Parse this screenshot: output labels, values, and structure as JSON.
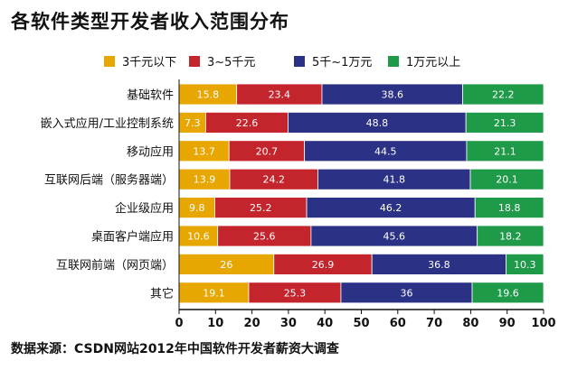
{
  "title": "各软件类型开发者收入范围分布",
  "source_note": "数据来源：CSDN网站2012年中国软件开发者薪资大调查",
  "chart_data": {
    "type": "bar",
    "stacked": true,
    "orientation": "horizontal",
    "categories": [
      "基础软件",
      "嵌入式应用/工业控制系统",
      "移动应用",
      "互联网后端（服务器端）",
      "企业级应用",
      "桌面客户端应用",
      "互联网前端（网页端）",
      "其它"
    ],
    "series": [
      {
        "name": "3千元以下",
        "color": "#e8a600",
        "values": [
          15.8,
          7.3,
          13.7,
          13.9,
          9.8,
          10.6,
          26,
          19.1
        ]
      },
      {
        "name": "3~5千元",
        "color": "#c4252c",
        "values": [
          23.4,
          22.6,
          20.7,
          24.2,
          25.2,
          25.6,
          26.9,
          25.3
        ]
      },
      {
        "name": "5千~1万元",
        "color": "#2b3285",
        "values": [
          38.6,
          48.8,
          44.5,
          41.8,
          46.2,
          45.6,
          36.8,
          36
        ]
      },
      {
        "name": "1万元以上",
        "color": "#1e9a48",
        "values": [
          22.2,
          21.3,
          21.1,
          20.1,
          18.8,
          18.2,
          10.3,
          19.6
        ]
      }
    ],
    "value_labels": [
      [
        "15.8",
        "23.4",
        "38.6",
        "22.2"
      ],
      [
        "7.3",
        "22.6",
        "48.8",
        "21.3"
      ],
      [
        "13.7",
        "20.7",
        "44.5",
        "21.1"
      ],
      [
        "13.9",
        "24.2",
        "41.8",
        "20.1"
      ],
      [
        "9.8",
        "25.2",
        "46.2",
        "18.8"
      ],
      [
        "10.6",
        "25.6",
        "45.6",
        "18.2"
      ],
      [
        "26",
        "26.9",
        "36.8",
        "10.3"
      ],
      [
        "19.1",
        "25.3",
        "36",
        "19.6"
      ]
    ],
    "xlim": [
      0,
      100
    ],
    "xticks": [
      "0",
      "10",
      "20",
      "30",
      "40",
      "50",
      "60",
      "70",
      "80",
      "90",
      "100"
    ],
    "legend_position": "top",
    "grid": false
  }
}
